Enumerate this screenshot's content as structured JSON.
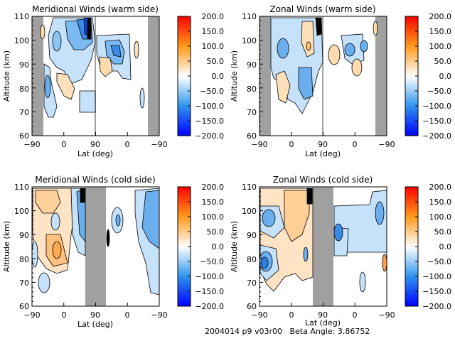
{
  "footer": {
    "text": "2004014 p9 v03r00   Beta Angle: 3.86752"
  },
  "colorbar": {
    "min": -200.0,
    "max": 200.0,
    "labels": [
      "200.0",
      "150.0",
      "100.0",
      "50.0",
      "0.0",
      "−50.0",
      "−100.0",
      "−150.0",
      "−200.0"
    ],
    "colors": {
      "max": "#ff0000",
      "high": "#ff9a1a",
      "mid_pos": "#ffe0b8",
      "zero": "#ffffff",
      "mid_neg": "#c8e4fb",
      "low": "#3a98ea",
      "min": "#0000ff"
    }
  },
  "chart_data": [
    {
      "type": "heatmap",
      "title": "Meridional Winds (warm side)",
      "xlabel": "Lat (deg)",
      "ylabel": "Altitude (km)",
      "xticks": [
        "−90",
        "0",
        "90",
        "0",
        "−90"
      ],
      "yticks": [
        "110",
        "100",
        "90",
        "80",
        "70",
        "60"
      ],
      "ylim": [
        60,
        110
      ],
      "colorbar_range": [
        -200,
        200
      ],
      "no_data_regions": [
        "left edge (-90 to -70 lat)",
        "right edge (-70 to -90 lat)"
      ],
      "features": [
        {
          "lat_region": "ascending 40-80",
          "alt": [
            95,
            110
          ],
          "value": -150
        },
        {
          "lat_region": "ascending -60 to 60",
          "alt": [
            85,
            110
          ],
          "value": -50
        },
        {
          "lat_region": "ascending -80",
          "alt": [
            70,
            90
          ],
          "value": -50
        },
        {
          "lat_region": "ascending 0-30",
          "alt": [
            75,
            85
          ],
          "value": 20
        },
        {
          "lat_region": "descending 60-30",
          "alt": [
            85,
            102
          ],
          "value": -60
        },
        {
          "lat_region": "descending 80-60",
          "alt": [
            85,
            92
          ],
          "value": 30
        }
      ]
    },
    {
      "type": "heatmap",
      "title": "Zonal Winds (warm side)",
      "xlabel": "Lat (deg)",
      "ylabel": "Altitude (km)",
      "xticks": [
        "−90",
        "0",
        "90",
        "0",
        "−90"
      ],
      "yticks": [
        "110",
        "100",
        "90",
        "80",
        "70",
        "60"
      ],
      "ylim": [
        60,
        110
      ],
      "colorbar_range": [
        -200,
        200
      ],
      "no_data_regions": [
        "left edge",
        "right edge"
      ],
      "features": [
        {
          "lat_region": "ascending -60 to 80",
          "alt": [
            70,
            110
          ],
          "value": -60
        },
        {
          "lat_region": "ascending 30-60",
          "alt": [
            92,
            105
          ],
          "value": 40
        },
        {
          "lat_region": "ascending -30",
          "alt": [
            75,
            85
          ],
          "value": 20
        },
        {
          "lat_region": "descending 60",
          "alt": [
            88,
            98
          ],
          "value": 40
        },
        {
          "lat_region": "descending 30 to -30",
          "alt": [
            90,
            102
          ],
          "value": -70
        },
        {
          "lat_region": "descending 0",
          "alt": [
            84,
            92
          ],
          "value": 40
        }
      ]
    },
    {
      "type": "heatmap",
      "title": "Meridional Winds (cold side)",
      "xlabel": "Lat (deg)",
      "ylabel": "Altitude (km)",
      "xticks": [
        "−90",
        "0",
        "90",
        "0",
        "−90"
      ],
      "yticks": [
        "110",
        "100",
        "90",
        "80",
        "70",
        "60"
      ],
      "ylim": [
        60,
        110
      ],
      "colorbar_range": [
        -200,
        200
      ],
      "no_data_regions": [
        "center (60 to 120 lat)"
      ],
      "features": [
        {
          "lat_region": "ascending -90 to 30",
          "alt": [
            75,
            110
          ],
          "value": 40
        },
        {
          "lat_region": "ascending -30",
          "alt": [
            78,
            90
          ],
          "value": 80
        },
        {
          "lat_region": "ascending 30-70",
          "alt": [
            85,
            110
          ],
          "value": -60
        },
        {
          "lat_region": "descending 0 to -90",
          "alt": [
            75,
            110
          ],
          "value": -50
        },
        {
          "lat_region": "descending 60",
          "alt": [
            90,
            100
          ],
          "value": -40
        }
      ]
    },
    {
      "type": "heatmap",
      "title": "Zonal Winds (cold side)",
      "xlabel": "Lat (deg)",
      "ylabel": "Altitude (km)",
      "xticks": [
        "−90",
        "0",
        "90",
        "0",
        "−90"
      ],
      "yticks": [
        "110",
        "100",
        "90",
        "80",
        "70",
        "60"
      ],
      "ylim": [
        60,
        110
      ],
      "colorbar_range": [
        -200,
        200
      ],
      "no_data_regions": [
        "center (60 to 120 lat)"
      ],
      "features": [
        {
          "lat_region": "ascending -90 to 60",
          "alt": [
            72,
            110
          ],
          "value": 40
        },
        {
          "lat_region": "ascending -70",
          "alt": [
            72,
            84
          ],
          "value": -120
        },
        {
          "lat_region": "ascending -60",
          "alt": [
            92,
            102
          ],
          "value": -70
        },
        {
          "lat_region": "descending 90 to -90",
          "alt": [
            83,
            103
          ],
          "value": -40
        },
        {
          "lat_region": "descending 90",
          "alt": [
            87,
            95
          ],
          "value": -100
        }
      ]
    }
  ]
}
